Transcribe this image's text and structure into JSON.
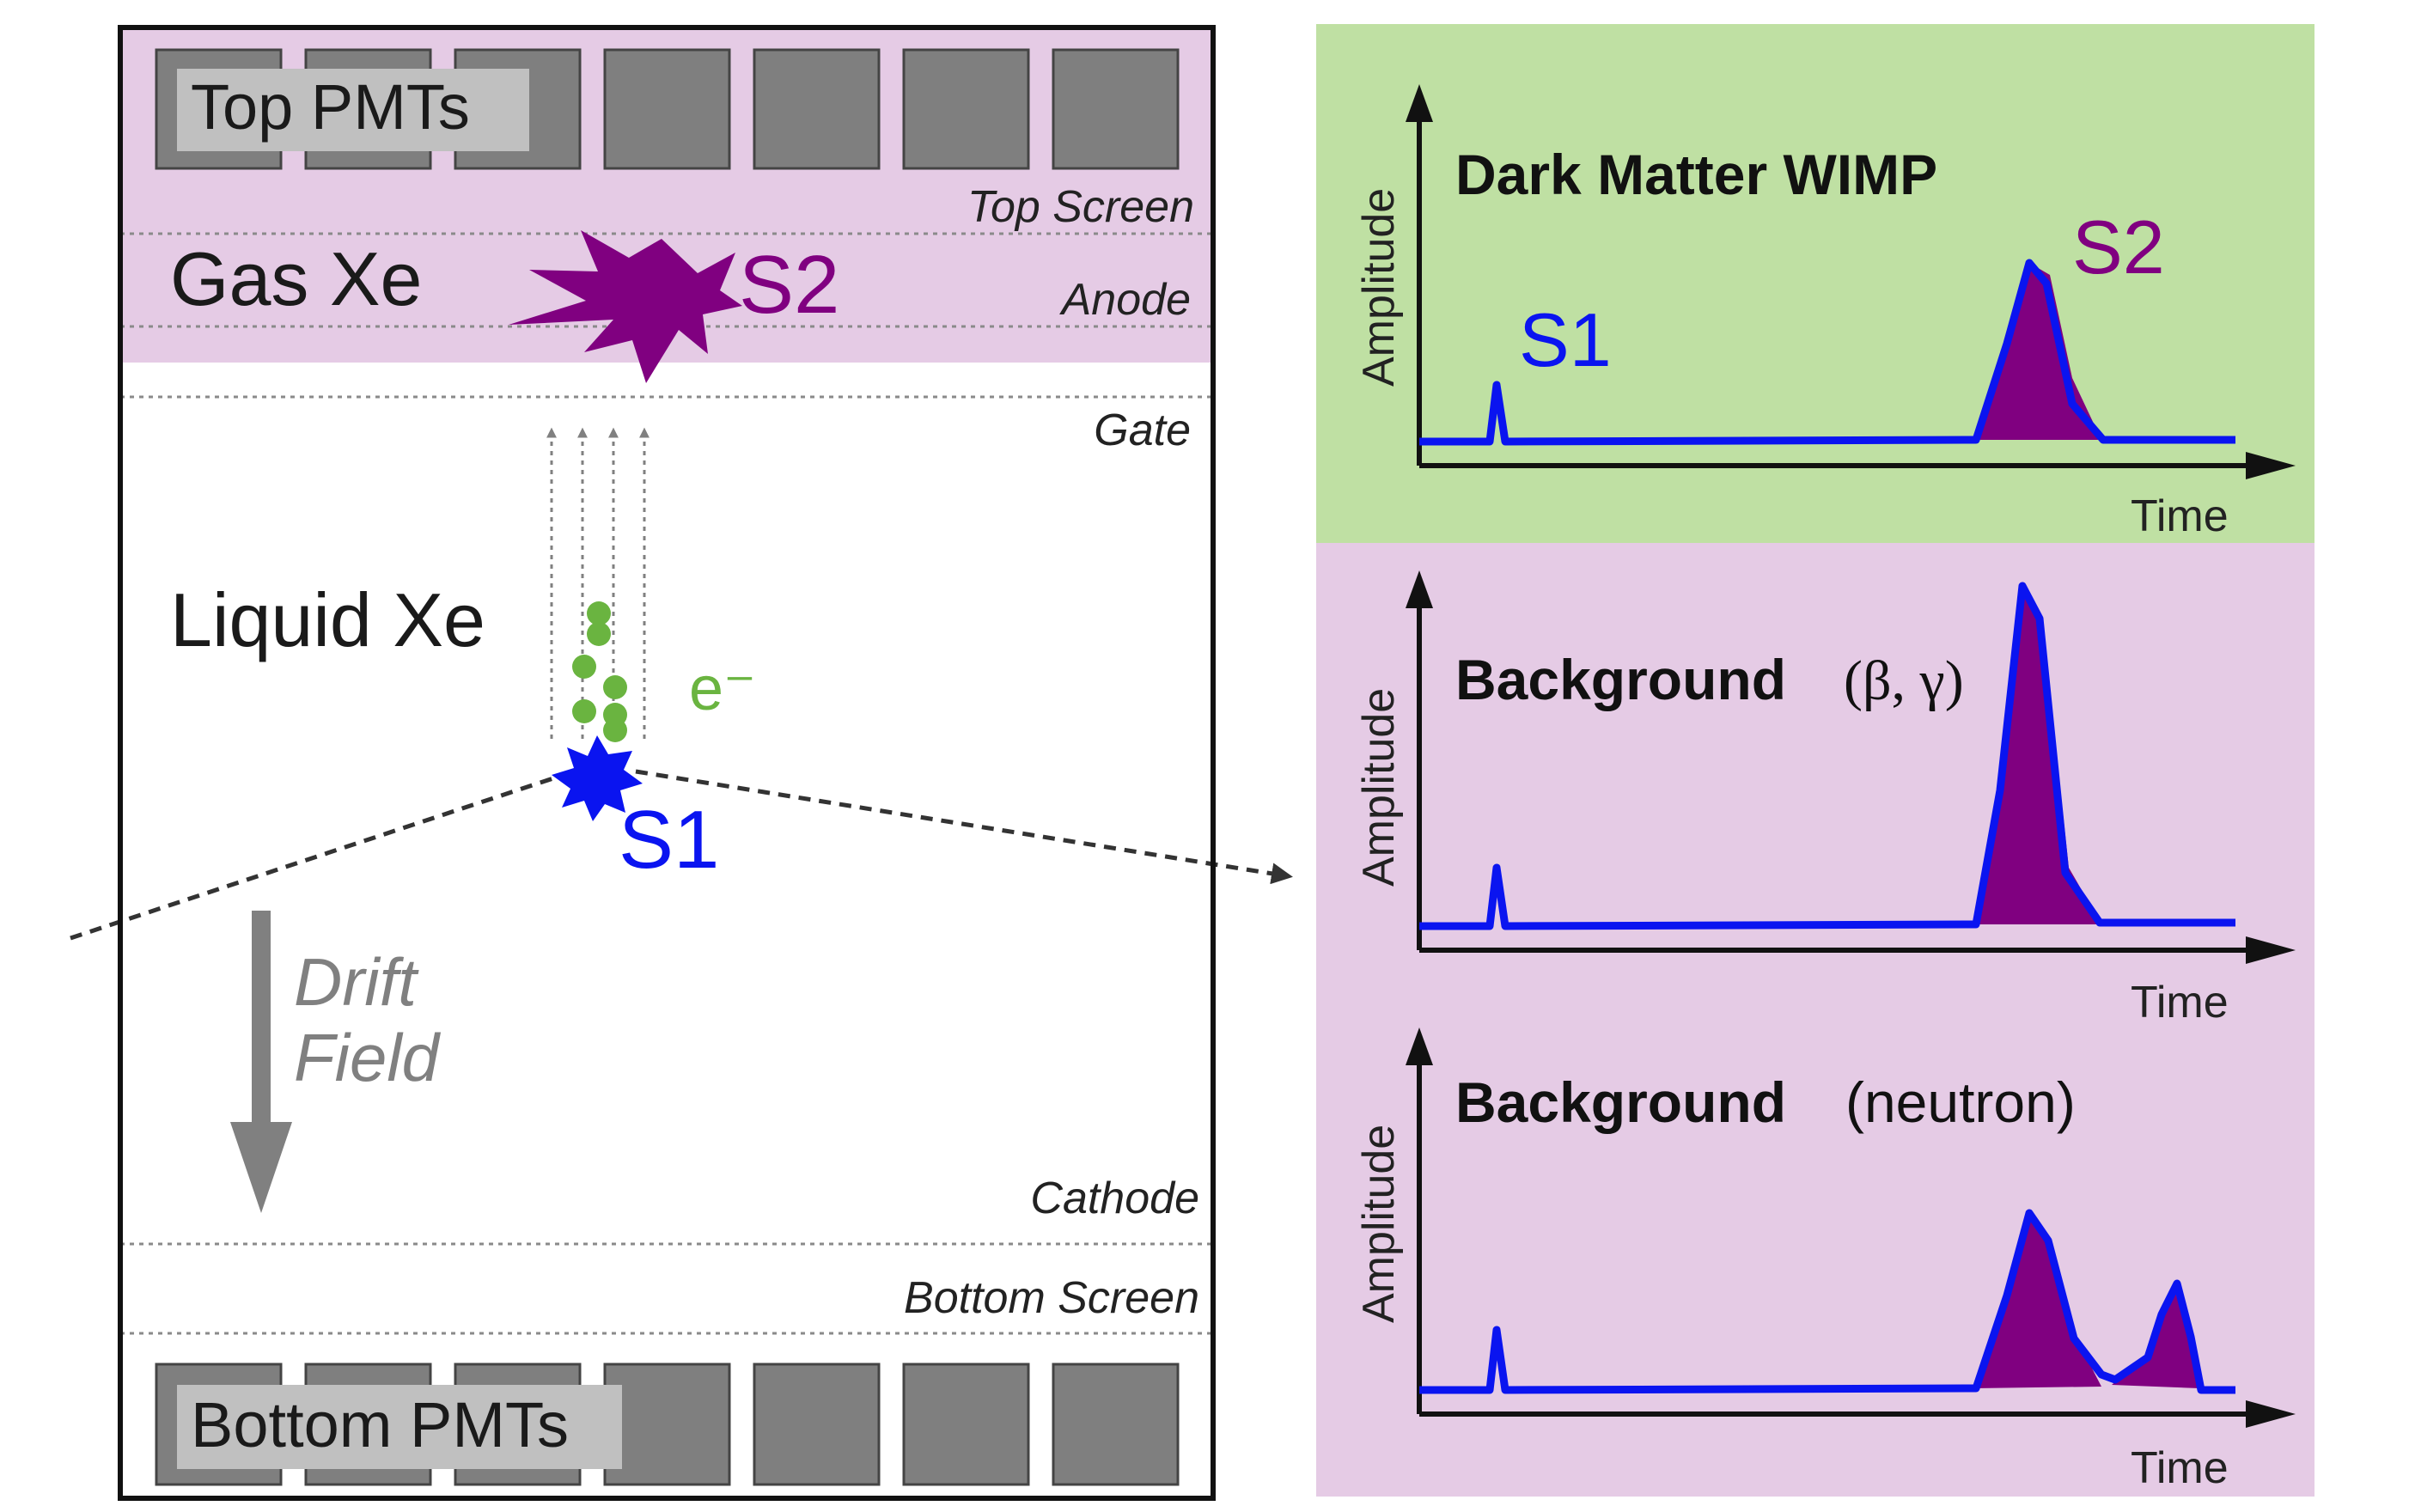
{
  "tpc": {
    "top_pmts": "Top PMTs",
    "bottom_pmts": "Bottom PMTs",
    "gas_xe": "Gas Xe",
    "liquid_xe": "Liquid Xe",
    "electron_label": "e⁻",
    "s1_label": "S1",
    "s2_label": "S2",
    "drift_line1": "Drift",
    "drift_line2": "Field",
    "levels": {
      "top_screen": "Top Screen",
      "anode": "Anode",
      "gate": "Gate",
      "cathode": "Cathode",
      "bottom_screen": "Bottom Screen"
    }
  },
  "panels": [
    {
      "title_bold": "Dark Matter WIMP",
      "title_rest": "",
      "y_label": "Amplitude",
      "x_label": "Time",
      "s1_label": "S1",
      "s2_label": "S2",
      "background": "#bfe0a3"
    },
    {
      "title_bold": "Background",
      "title_rest": "(β, γ)",
      "y_label": "Amplitude",
      "x_label": "Time",
      "background": "#e5cbe5"
    },
    {
      "title_bold": "Background",
      "title_rest": "(neutron)",
      "y_label": "Amplitude",
      "x_label": "Time",
      "background": "#e5cbe5"
    }
  ],
  "colors": {
    "region": "#e5cbe5",
    "pmt": "#7f7f7f",
    "s1": "#0a14f0",
    "s2": "#800080",
    "electron": "#6ab440",
    "drift_arrow": "#808080"
  }
}
